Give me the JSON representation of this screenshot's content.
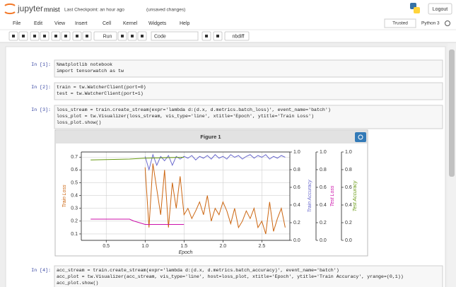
{
  "header": {
    "logo": "jupyter",
    "notebook_name": "mnist",
    "checkpoint": "Last Checkpoint: an hour ago",
    "autosave": "(unsaved changes)",
    "logout": "Logout"
  },
  "menu": [
    "File",
    "Edit",
    "View",
    "Insert",
    "Cell",
    "Kernel",
    "Widgets",
    "Help"
  ],
  "kernel_status": {
    "trusted": "Trusted",
    "kernel": "Python 3"
  },
  "toolbar": {
    "run": "Run",
    "cell_type": "Code",
    "nbdiff": "nbdiff"
  },
  "cells": [
    {
      "prompt": "In [1]:",
      "lines": [
        "%matplotlib notebook",
        "import tensorwatch as tw"
      ]
    },
    {
      "prompt": "In [2]:",
      "lines": [
        "train = tw.WatcherClient(port=0)",
        "test = tw.WatcherClient(port=1)"
      ]
    },
    {
      "prompt": "In [3]:",
      "lines": [
        "loss_stream = train.create_stream(expr='lambda d:(d.x, d.metrics.batch_loss)', event_name='batch')",
        "loss_plot = tw.Visualizer(loss_stream, vis_type='line', xtitle='Epoch', ytitle='Train Loss')",
        "loss_plot.show()"
      ]
    },
    {
      "prompt": "In [4]:",
      "lines": [
        "acc_stream = train.create_stream(expr='lambda d:(d.x, d.metrics.batch_accuracy)', event_name='batch')",
        "acc_plot = tw.Visualizer(acc_stream, vis_type='line', host=loss_plot, xtitle='Epoch', ytitle='Train Accuracy', yrange=(0,1))",
        "acc_plot.show()"
      ]
    }
  ],
  "figure_window": {
    "title": "Figure 1"
  },
  "chart_data": {
    "type": "line",
    "xlabel": "Epoch",
    "grid": true,
    "xlim": [
      0.18,
      2.86
    ],
    "xticks": [
      0.5,
      {
        "value": 1.0,
        "label": "1.0"
      },
      1.5,
      {
        "value": 2.0,
        "label": "2.0"
      },
      2.5
    ],
    "ylim": [
      0.05,
      0.74
    ],
    "yticks": [
      0.1,
      0.2,
      0.3,
      0.4,
      0.5,
      0.6,
      0.7
    ],
    "y2lim": [
      0,
      1
    ],
    "y2ticks": [
      {
        "value": 0,
        "label": "0.0"
      },
      0.2,
      0.4,
      0.6,
      0.8,
      {
        "value": 1,
        "label": "1.0"
      }
    ],
    "y3lim": [
      0,
      1
    ],
    "y3ticks": [
      {
        "value": 0,
        "label": "0.0"
      },
      0.2,
      0.4,
      0.6,
      0.8,
      {
        "value": 1,
        "label": "1.0"
      }
    ],
    "y4lim": [
      0,
      1
    ],
    "y4ticks": [
      {
        "value": 0,
        "label": "0.0"
      },
      0.2,
      0.4,
      0.6,
      0.8,
      {
        "value": 1,
        "label": "1.0"
      }
    ],
    "series": [
      {
        "name": "Train Loss",
        "color": "#cc6611",
        "axis": "y",
        "x": [
          1.0,
          1.05,
          1.1,
          1.15,
          1.2,
          1.25,
          1.3,
          1.35,
          1.4,
          1.45,
          1.5,
          1.55,
          1.6,
          1.65,
          1.7,
          1.75,
          1.8,
          1.85,
          1.9,
          1.95,
          2.0,
          2.05,
          2.1,
          2.15,
          2.2,
          2.25,
          2.3,
          2.35,
          2.4,
          2.45,
          2.5,
          2.55,
          2.6,
          2.65,
          2.7,
          2.75,
          2.8
        ],
        "values": [
          0.62,
          0.15,
          0.65,
          0.45,
          0.25,
          0.6,
          0.15,
          0.5,
          0.3,
          0.55,
          0.25,
          0.3,
          0.22,
          0.28,
          0.35,
          0.25,
          0.4,
          0.2,
          0.3,
          0.25,
          0.35,
          0.28,
          0.18,
          0.3,
          0.15,
          0.2,
          0.28,
          0.22,
          0.3,
          0.15,
          0.2,
          0.1,
          0.35,
          0.12,
          0.22,
          0.3,
          0.15
        ]
      },
      {
        "name": "Train Accuracy",
        "color": "#6a6acd",
        "axis": "y2",
        "x": [
          1.0,
          1.05,
          1.1,
          1.15,
          1.2,
          1.25,
          1.3,
          1.35,
          1.4,
          1.45,
          1.5,
          1.55,
          1.6,
          1.65,
          1.7,
          1.75,
          1.8,
          1.85,
          1.9,
          1.95,
          2.0,
          2.05,
          2.1,
          2.15,
          2.2,
          2.25,
          2.3,
          2.35,
          2.4,
          2.45,
          2.5,
          2.55,
          2.6,
          2.65,
          2.7,
          2.75,
          2.8
        ],
        "values": [
          0.95,
          0.8,
          0.97,
          0.85,
          0.95,
          0.9,
          0.96,
          0.85,
          0.95,
          0.92,
          0.95,
          0.93,
          0.96,
          0.91,
          0.95,
          0.93,
          0.96,
          0.92,
          0.97,
          0.93,
          0.95,
          0.92,
          0.97,
          0.94,
          0.96,
          0.92,
          0.95,
          0.97,
          0.93,
          0.96,
          0.94,
          0.97,
          0.92,
          0.95,
          0.93,
          0.96,
          0.94
        ]
      },
      {
        "name": "Test Loss",
        "color": "#cc11aa",
        "axis": "y3",
        "x": [
          0.3,
          0.8,
          0.85,
          1.0,
          1.5
        ],
        "values": [
          0.24,
          0.24,
          0.22,
          0.18,
          0.18
        ]
      },
      {
        "name": "Test Accuracy",
        "color": "#669911",
        "axis": "y4",
        "x": [
          0.3,
          0.8,
          1.0,
          1.5
        ],
        "values": [
          0.91,
          0.92,
          0.93,
          0.94
        ]
      }
    ]
  }
}
